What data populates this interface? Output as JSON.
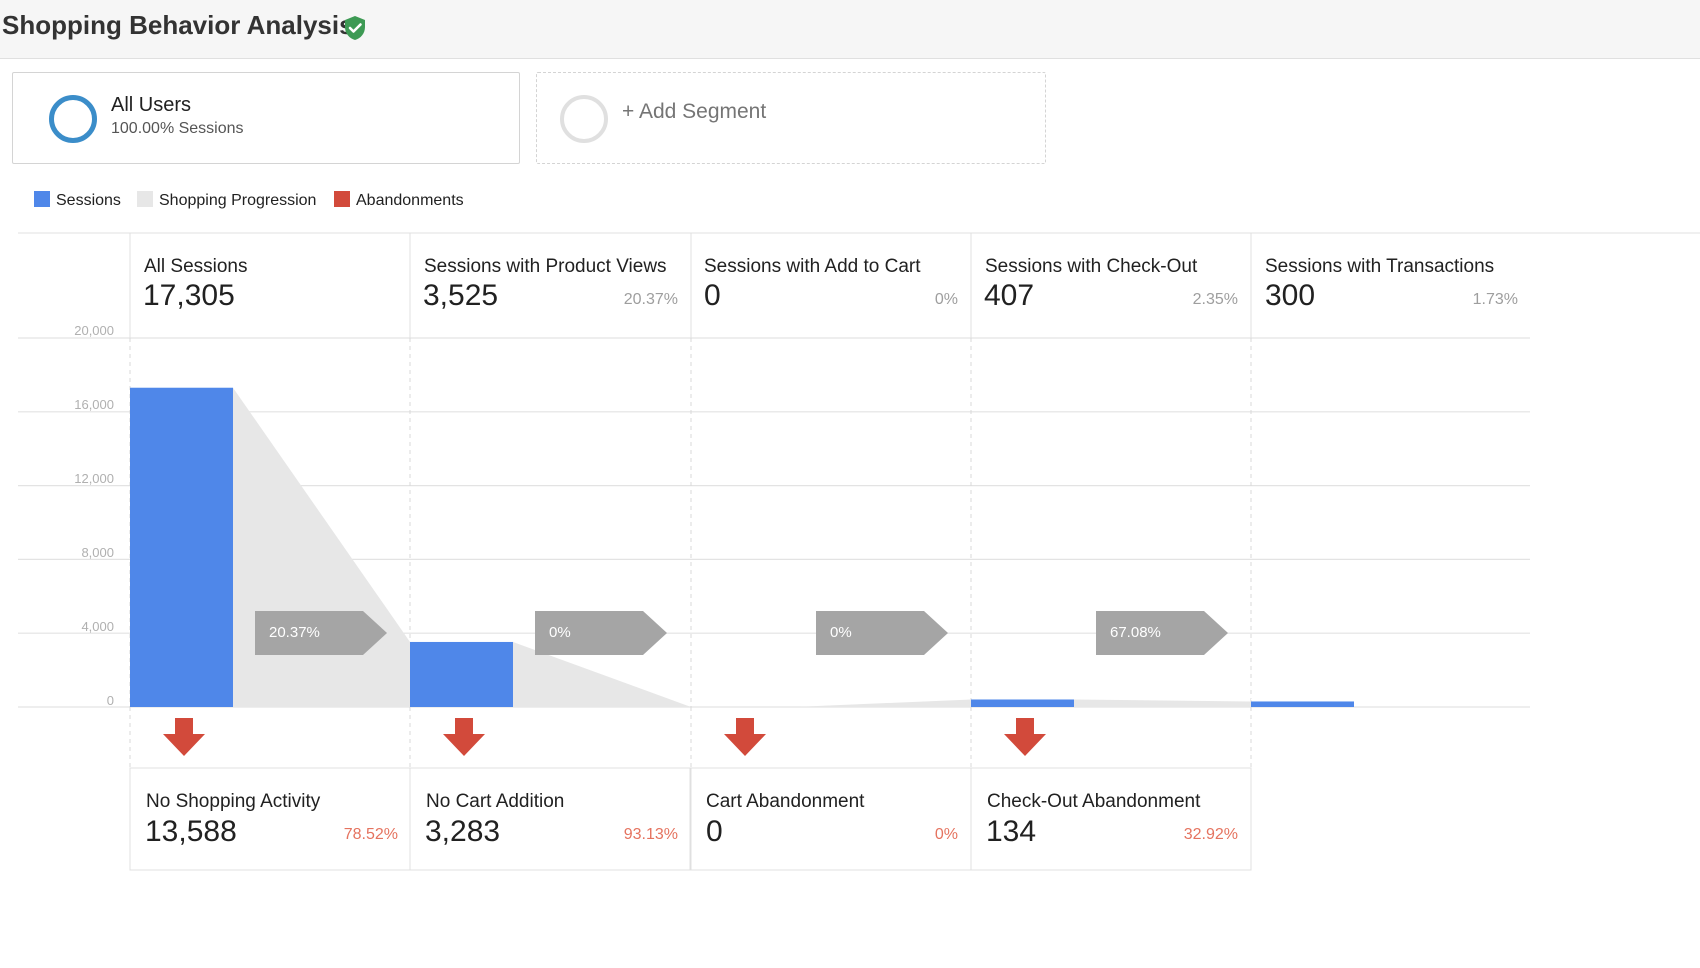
{
  "header": {
    "title": "Shopping Behavior Analysis",
    "verified_icon": "shield-check-icon",
    "verified_color": "#3d9a54"
  },
  "segments": [
    {
      "name": "All Users",
      "sub": "100.00% Sessions",
      "ring_color": "#3b8dc9"
    },
    {
      "add_label": "+ Add Segment",
      "ring_color": "#e0e0e0"
    }
  ],
  "legend": [
    {
      "label": "Sessions",
      "color": "#4f87e9"
    },
    {
      "label": "Shopping Progression",
      "color": "#e7e7e7"
    },
    {
      "label": "Abandonments",
      "color": "#d24a3b"
    }
  ],
  "steps": [
    {
      "name": "All Sessions",
      "value": "17,305",
      "pct": ""
    },
    {
      "name": "Sessions with Product Views",
      "value": "3,525",
      "pct": "20.37%"
    },
    {
      "name": "Sessions with Add to Cart",
      "value": "0",
      "pct": "0%"
    },
    {
      "name": "Sessions with Check-Out",
      "value": "407",
      "pct": "2.35%"
    },
    {
      "name": "Sessions with Transactions",
      "value": "300",
      "pct": "1.73%"
    }
  ],
  "progression": [
    "20.37%",
    "0%",
    "0%",
    "67.08%"
  ],
  "abandonments": [
    {
      "name": "No Shopping Activity",
      "value": "13,588",
      "pct": "78.52%"
    },
    {
      "name": "No Cart Addition",
      "value": "3,283",
      "pct": "93.13%"
    },
    {
      "name": "Cart Abandonment",
      "value": "0",
      "pct": "0%"
    },
    {
      "name": "Check-Out Abandonment",
      "value": "134",
      "pct": "32.92%"
    }
  ],
  "chart_data": {
    "type": "bar",
    "categories": [
      "All Sessions",
      "Sessions with Product Views",
      "Sessions with Add to Cart",
      "Sessions with Check-Out",
      "Sessions with Transactions"
    ],
    "values": [
      17305,
      3525,
      0,
      407,
      300
    ],
    "y_ticks": [
      "0",
      "4,000",
      "8,000",
      "12,000",
      "16,000",
      "20,000"
    ],
    "ylim": [
      0,
      20000
    ],
    "grid": true,
    "colors": {
      "sessions": "#4f87e9",
      "progression": "#e7e7e7",
      "arrow": "#a5a5a5",
      "abandon_arrow": "#d24a3b"
    }
  }
}
